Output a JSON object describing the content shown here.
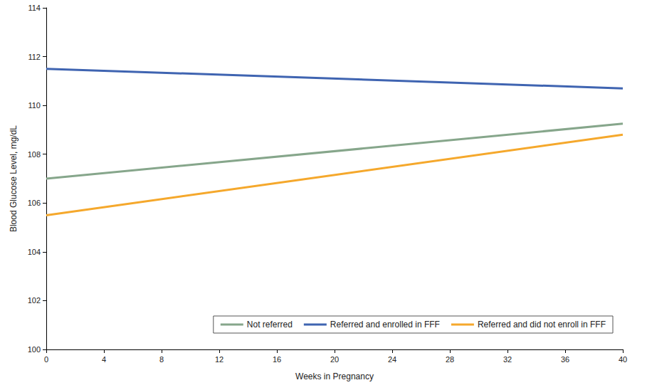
{
  "chart_data": {
    "type": "line",
    "x_label": "Weeks in Pregnancy",
    "y_label": "Blood Glucose Level, mg/dL",
    "x": [
      0,
      40
    ],
    "series": [
      {
        "name": "Not referred",
        "color": "#86a68b",
        "values": [
          107.0,
          109.25
        ]
      },
      {
        "name": "Referred and enrolled in FFF",
        "color": "#3f64b1",
        "values": [
          111.5,
          110.7
        ]
      },
      {
        "name": "Referred and did not enroll in FFF",
        "color": "#f5a82c",
        "values": [
          105.5,
          108.8
        ]
      }
    ],
    "xlim": [
      0,
      40
    ],
    "xticks": [
      0,
      4,
      8,
      12,
      16,
      20,
      24,
      28,
      32,
      36,
      40
    ],
    "ylim": [
      100,
      114
    ],
    "yticks": [
      100,
      102,
      104,
      106,
      108,
      110,
      112,
      114
    ],
    "grid": false,
    "legend": "bottom right"
  }
}
